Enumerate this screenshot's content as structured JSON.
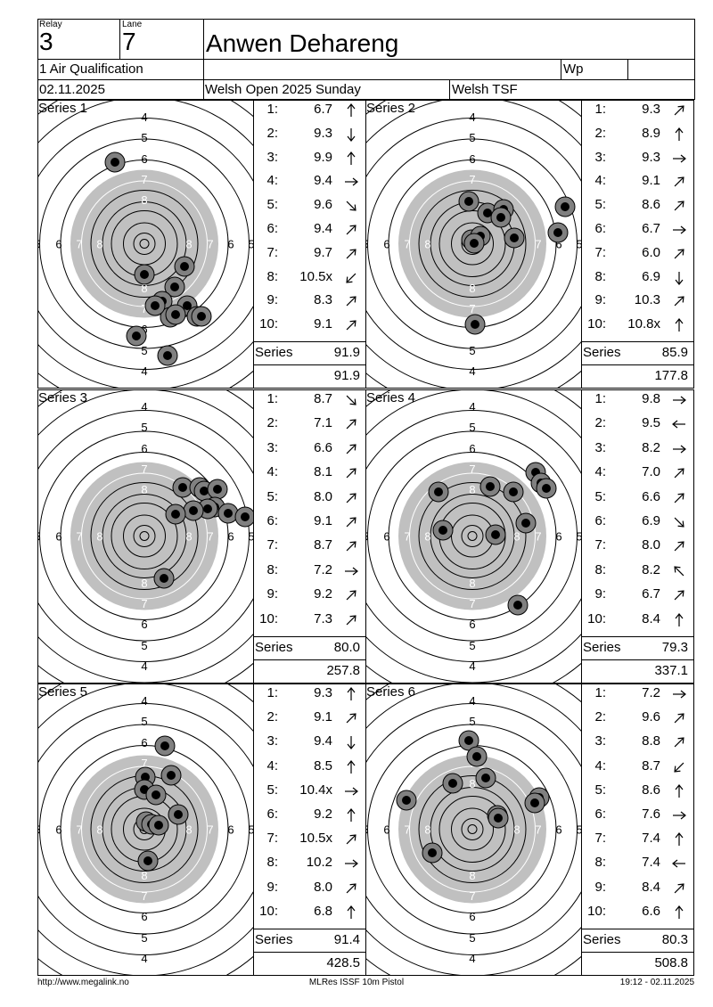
{
  "header": {
    "relay_label": "Relay",
    "relay": "3",
    "lane_label": "Lane",
    "lane": "7",
    "name": "Anwen Dehareng",
    "event": "1 Air Qualification",
    "class_label": "Wp",
    "date": "02.11.2025",
    "competition": "Welsh Open 2025 Sunday",
    "club": "Welsh TSF"
  },
  "series": [
    {
      "label": "Series 1",
      "total_label": "Series",
      "total": "91.9",
      "cumulative": "91.9",
      "shots": [
        {
          "n": "1:",
          "v": "6.7",
          "dir": "N"
        },
        {
          "n": "2:",
          "v": "9.3",
          "dir": "S"
        },
        {
          "n": "3:",
          "v": "9.9",
          "dir": "N"
        },
        {
          "n": "4:",
          "v": "9.4",
          "dir": "E"
        },
        {
          "n": "5:",
          "v": "9.6",
          "dir": "SE"
        },
        {
          "n": "6:",
          "v": "9.4",
          "dir": "NE"
        },
        {
          "n": "7:",
          "v": "9.7",
          "dir": "NE"
        },
        {
          "n": "8:",
          "v": "10.5x",
          "dir": "SW"
        },
        {
          "n": "9:",
          "v": "8.3",
          "dir": "NE"
        },
        {
          "n": "10:",
          "v": "9.1",
          "dir": "NE"
        }
      ]
    },
    {
      "label": "Series 2",
      "total_label": "Series",
      "total": "85.9",
      "cumulative": "177.8",
      "shots": [
        {
          "n": "1:",
          "v": "9.3",
          "dir": "NE"
        },
        {
          "n": "2:",
          "v": "8.9",
          "dir": "N"
        },
        {
          "n": "3:",
          "v": "9.3",
          "dir": "E"
        },
        {
          "n": "4:",
          "v": "9.1",
          "dir": "NE"
        },
        {
          "n": "5:",
          "v": "8.6",
          "dir": "NE"
        },
        {
          "n": "6:",
          "v": "6.7",
          "dir": "E"
        },
        {
          "n": "7:",
          "v": "6.0",
          "dir": "NE"
        },
        {
          "n": "8:",
          "v": "6.9",
          "dir": "S"
        },
        {
          "n": "9:",
          "v": "10.3",
          "dir": "NE"
        },
        {
          "n": "10:",
          "v": "10.8x",
          "dir": "N"
        }
      ]
    },
    {
      "label": "Series 3",
      "total_label": "Series",
      "total": "80.0",
      "cumulative": "257.8",
      "shots": [
        {
          "n": "1:",
          "v": "8.7",
          "dir": "SE"
        },
        {
          "n": "2:",
          "v": "7.1",
          "dir": "NE"
        },
        {
          "n": "3:",
          "v": "6.6",
          "dir": "NE"
        },
        {
          "n": "4:",
          "v": "8.1",
          "dir": "NE"
        },
        {
          "n": "5:",
          "v": "8.0",
          "dir": "NE"
        },
        {
          "n": "6:",
          "v": "9.1",
          "dir": "NE"
        },
        {
          "n": "7:",
          "v": "8.7",
          "dir": "NE"
        },
        {
          "n": "8:",
          "v": "7.2",
          "dir": "E"
        },
        {
          "n": "9:",
          "v": "9.2",
          "dir": "NE"
        },
        {
          "n": "10:",
          "v": "7.3",
          "dir": "NE"
        }
      ]
    },
    {
      "label": "Series 4",
      "total_label": "Series",
      "total": "79.3",
      "cumulative": "337.1",
      "shots": [
        {
          "n": "1:",
          "v": "9.8",
          "dir": "E"
        },
        {
          "n": "2:",
          "v": "9.5",
          "dir": "W"
        },
        {
          "n": "3:",
          "v": "8.2",
          "dir": "E"
        },
        {
          "n": "4:",
          "v": "7.0",
          "dir": "NE"
        },
        {
          "n": "5:",
          "v": "6.6",
          "dir": "NE"
        },
        {
          "n": "6:",
          "v": "6.9",
          "dir": "SE"
        },
        {
          "n": "7:",
          "v": "8.0",
          "dir": "NE"
        },
        {
          "n": "8:",
          "v": "8.2",
          "dir": "NW"
        },
        {
          "n": "9:",
          "v": "6.7",
          "dir": "NE"
        },
        {
          "n": "10:",
          "v": "8.4",
          "dir": "N"
        }
      ]
    },
    {
      "label": "Series 5",
      "total_label": "Series",
      "total": "91.4",
      "cumulative": "428.5",
      "shots": [
        {
          "n": "1:",
          "v": "9.3",
          "dir": "N"
        },
        {
          "n": "2:",
          "v": "9.1",
          "dir": "NE"
        },
        {
          "n": "3:",
          "v": "9.4",
          "dir": "S"
        },
        {
          "n": "4:",
          "v": "8.5",
          "dir": "N"
        },
        {
          "n": "5:",
          "v": "10.4x",
          "dir": "E"
        },
        {
          "n": "6:",
          "v": "9.2",
          "dir": "N"
        },
        {
          "n": "7:",
          "v": "10.5x",
          "dir": "NE"
        },
        {
          "n": "8:",
          "v": "10.2",
          "dir": "E"
        },
        {
          "n": "9:",
          "v": "8.0",
          "dir": "NE"
        },
        {
          "n": "10:",
          "v": "6.8",
          "dir": "N"
        }
      ]
    },
    {
      "label": "Series 6",
      "total_label": "Series",
      "total": "80.3",
      "cumulative": "508.8",
      "shots": [
        {
          "n": "1:",
          "v": "7.2",
          "dir": "E"
        },
        {
          "n": "2:",
          "v": "9.6",
          "dir": "NE"
        },
        {
          "n": "3:",
          "v": "8.8",
          "dir": "NE"
        },
        {
          "n": "4:",
          "v": "8.7",
          "dir": "SW"
        },
        {
          "n": "5:",
          "v": "8.6",
          "dir": "N"
        },
        {
          "n": "6:",
          "v": "7.6",
          "dir": "E"
        },
        {
          "n": "7:",
          "v": "7.4",
          "dir": "N"
        },
        {
          "n": "8:",
          "v": "7.4",
          "dir": "W"
        },
        {
          "n": "9:",
          "v": "8.4",
          "dir": "NE"
        },
        {
          "n": "10:",
          "v": "6.6",
          "dir": "N"
        }
      ]
    }
  ],
  "target_labels": {
    "rings_vertical": [
      "4",
      "5",
      "6",
      "7",
      "8",
      "8",
      "7",
      "6",
      "5",
      "4"
    ],
    "rings_horizontal": [
      "5",
      "6",
      "7",
      "8",
      "8",
      "7",
      "6",
      "5"
    ],
    "black_color": "#c0c0c0"
  },
  "footer": {
    "left": "http://www.megalink.no",
    "center": "MLRes ISSF 10m Pistol",
    "right": "19:12 - 02.11.2025"
  }
}
